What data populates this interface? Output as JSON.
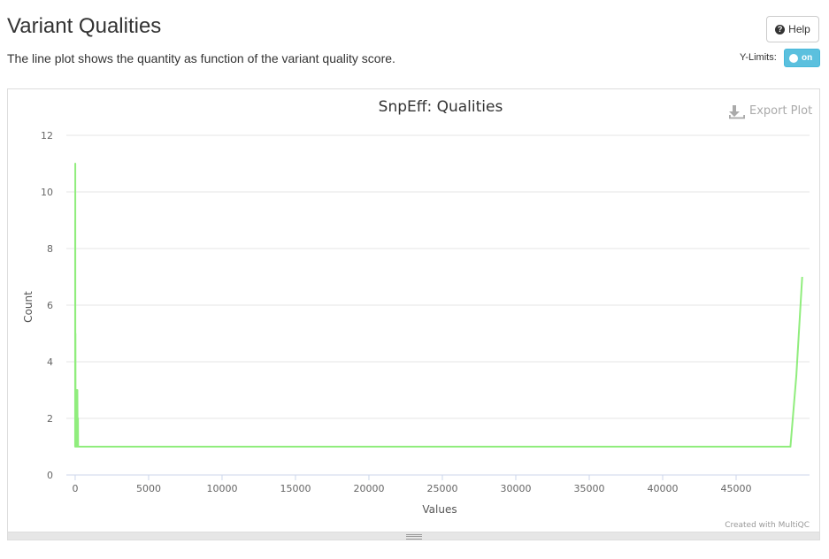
{
  "page": {
    "title": "Variant Qualities",
    "description": "The line plot shows the quantity as function of the variant quality score.",
    "help_label": "Help",
    "ylimits_label": "Y-Limits:",
    "toggle_label": "on"
  },
  "chart_data": {
    "type": "line",
    "title": "SnpEff: Qualities",
    "xlabel": "Values",
    "ylabel": "Count",
    "export_label": "Export Plot",
    "credit": "Created with MultiQC",
    "xlim": [
      -600,
      50000
    ],
    "ylim": [
      0,
      12
    ],
    "xticks": [
      0,
      5000,
      10000,
      15000,
      20000,
      25000,
      30000,
      35000,
      40000,
      45000
    ],
    "yticks": [
      0,
      2,
      4,
      6,
      8,
      10,
      12
    ],
    "grid": true,
    "line_color": "#90ed7d",
    "series": [
      {
        "x": [
          0,
          1,
          2,
          3,
          5,
          8,
          12,
          20,
          28,
          40,
          60,
          80,
          95,
          110,
          130,
          150,
          170,
          190,
          200,
          220,
          48700,
          49100,
          49500
        ],
        "values": [
          1,
          9,
          1,
          8,
          1,
          11,
          1,
          5,
          1,
          3,
          1,
          2,
          1,
          3,
          1,
          3,
          1,
          2,
          1,
          1,
          1,
          3.5,
          7
        ]
      }
    ]
  }
}
